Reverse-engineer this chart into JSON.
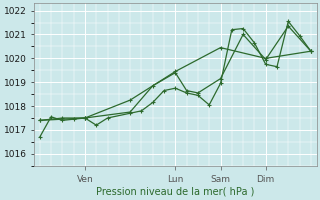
{
  "xlabel": "Pression niveau de la mer( hPa )",
  "ylim": [
    1015.5,
    1022.3
  ],
  "bg_color": "#cce8ea",
  "grid_color": "#ffffff",
  "line_color": "#2d6a2d",
  "series1_x": [
    0,
    2,
    4,
    6,
    8,
    10,
    12,
    16,
    18,
    20,
    22,
    24,
    26,
    28,
    30,
    32,
    34,
    36,
    38,
    40,
    42,
    44,
    46,
    48
  ],
  "series1_y": [
    1016.7,
    1017.55,
    1017.4,
    1017.45,
    1017.5,
    1017.2,
    1017.5,
    1017.7,
    1017.8,
    1018.15,
    1018.65,
    1018.75,
    1018.55,
    1018.45,
    1018.05,
    1018.95,
    1021.2,
    1021.25,
    1020.65,
    1019.75,
    1019.65,
    1021.55,
    1020.95,
    1020.3
  ],
  "series2_x": [
    0,
    4,
    8,
    16,
    20,
    24,
    26,
    28,
    32,
    36,
    40,
    44,
    48
  ],
  "series2_y": [
    1017.4,
    1017.5,
    1017.5,
    1017.75,
    1018.85,
    1019.4,
    1018.65,
    1018.55,
    1019.15,
    1021.0,
    1019.95,
    1021.35,
    1020.3
  ],
  "series3_x": [
    0,
    8,
    16,
    24,
    32,
    40,
    48
  ],
  "series3_y": [
    1017.4,
    1017.5,
    1018.25,
    1019.45,
    1020.45,
    1020.0,
    1020.3
  ],
  "xtick_positions": [
    8,
    24,
    32,
    40
  ],
  "xtick_labels": [
    "Ven",
    "Lun",
    "Sam",
    "Dim"
  ],
  "ytick_positions": [
    1016,
    1017,
    1018,
    1019,
    1020,
    1021,
    1022
  ]
}
